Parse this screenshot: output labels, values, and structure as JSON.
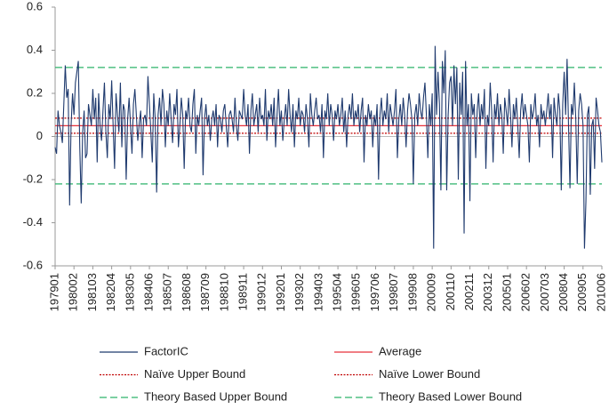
{
  "chart_data": {
    "type": "line",
    "categories": [
      "197901",
      null,
      null,
      null,
      null,
      null,
      null,
      null,
      null,
      null,
      null,
      null,
      null,
      "198002",
      null,
      null,
      null,
      null,
      null,
      null,
      null,
      null,
      null,
      null,
      null,
      null,
      "198103",
      null,
      null,
      null,
      null,
      null,
      null,
      null,
      null,
      null,
      null,
      null,
      null,
      "198204",
      null,
      null,
      null,
      null,
      null,
      null,
      null,
      null,
      null,
      null,
      null,
      null,
      "198305",
      null,
      null,
      null,
      null,
      null,
      null,
      null,
      null,
      null,
      null,
      null,
      null,
      "198406",
      null,
      null,
      null,
      null,
      null,
      null,
      null,
      null,
      null,
      null,
      null,
      null,
      "198507",
      null,
      null,
      null,
      null,
      null,
      null,
      null,
      null,
      null,
      null,
      null,
      null,
      "198608",
      null,
      null,
      null,
      null,
      null,
      null,
      null,
      null,
      null,
      null,
      null,
      null,
      "198709",
      null,
      null,
      null,
      null,
      null,
      null,
      null,
      null,
      null,
      null,
      null,
      null,
      "198810",
      null,
      null,
      null,
      null,
      null,
      null,
      null,
      null,
      null,
      null,
      null,
      null,
      "198911",
      null,
      null,
      null,
      null,
      null,
      null,
      null,
      null,
      null,
      null,
      null,
      null,
      "199012",
      null,
      null,
      null,
      null,
      null,
      null,
      null,
      null,
      null,
      null,
      null,
      null,
      "199201",
      null,
      null,
      null,
      null,
      null,
      null,
      null,
      null,
      null,
      null,
      null,
      null,
      "199302",
      null,
      null,
      null,
      null,
      null,
      null,
      null,
      null,
      null,
      null,
      null,
      null,
      "199403",
      null,
      null,
      null,
      null,
      null,
      null,
      null,
      null,
      null,
      null,
      null,
      null,
      "199504",
      null,
      null,
      null,
      null,
      null,
      null,
      null,
      null,
      null,
      null,
      null,
      null,
      "199605",
      null,
      null,
      null,
      null,
      null,
      null,
      null,
      null,
      null,
      null,
      null,
      null,
      "199706",
      null,
      null,
      null,
      null,
      null,
      null,
      null,
      null,
      null,
      null,
      null,
      null,
      "199807",
      null,
      null,
      null,
      null,
      null,
      null,
      null,
      null,
      null,
      null,
      null,
      null,
      "199908",
      null,
      null,
      null,
      null,
      null,
      null,
      null,
      null,
      null,
      null,
      null,
      null,
      "200009",
      null,
      null,
      null,
      null,
      null,
      null,
      null,
      null,
      null,
      null,
      null,
      null,
      "200110",
      null,
      null,
      null,
      null,
      null,
      null,
      null,
      null,
      null,
      null,
      null,
      null,
      "200211",
      null,
      null,
      null,
      null,
      null,
      null,
      null,
      null,
      null,
      null,
      null,
      null,
      "200312",
      null,
      null,
      null,
      null,
      null,
      null,
      null,
      null,
      null,
      null,
      null,
      null,
      "200501",
      null,
      null,
      null,
      null,
      null,
      null,
      null,
      null,
      null,
      null,
      null,
      null,
      "200602",
      null,
      null,
      null,
      null,
      null,
      null,
      null,
      null,
      null,
      null,
      null,
      null,
      "200703",
      null,
      null,
      null,
      null,
      null,
      null,
      null,
      null,
      null,
      null,
      null,
      null,
      "200804",
      null,
      null,
      null,
      null,
      null,
      null,
      null,
      null,
      null,
      null,
      null,
      null,
      "200905",
      null,
      null,
      null,
      null,
      null,
      null,
      null,
      null,
      null,
      null,
      null,
      null,
      "201006"
    ],
    "series": [
      {
        "name": "FactorIC",
        "color": "#1f3a6e",
        "values": [
          -0.05,
          -0.08,
          0.12,
          0.05,
          0.02,
          -0.03,
          0.15,
          0.33,
          0.18,
          0.22,
          -0.32,
          0.05,
          0.2,
          0.1,
          0.25,
          0.3,
          0.35,
          -0.05,
          -0.31,
          0.02,
          0.12,
          -0.1,
          -0.08,
          0.15,
          0.1,
          0.05,
          0.22,
          0.08,
          0.18,
          -0.12,
          0.2,
          0.05,
          -0.02,
          0.12,
          0.25,
          0.02,
          -0.1,
          0.15,
          0.08,
          0.26,
          0.05,
          -0.15,
          0.2,
          0.1,
          0.02,
          0.25,
          -0.05,
          0.15,
          0.12,
          -0.2,
          0.08,
          0.18,
          0.05,
          -0.08,
          0.15,
          0.22,
          0.1,
          -0.02,
          0.06,
          0.12,
          -0.1,
          0.08,
          0.1,
          0.05,
          0.28,
          0.15,
          0.02,
          -0.12,
          0.2,
          0.08,
          -0.26,
          0.1,
          0.18,
          0.05,
          0.22,
          0.15,
          -0.05,
          0.12,
          0.05,
          0.2,
          0.08,
          -0.03,
          0.15,
          0.1,
          0.22,
          -0.05,
          0.05,
          0.18,
          0.1,
          -0.15,
          0.12,
          0.08,
          0.18,
          0.05,
          0.02,
          0.15,
          0.22,
          -0.08,
          0.1,
          0.05,
          0.12,
          0.18,
          -0.18,
          0.08,
          0.15,
          0.05,
          0.1,
          -0.02,
          0.08,
          0.12,
          0.05,
          0.15,
          -0.05,
          0.1,
          0.08,
          0.02,
          0.12,
          0.15,
          0.05,
          -0.05,
          0.1,
          0.12,
          0.08,
          0.02,
          0.18,
          0.05,
          -0.02,
          0.12,
          0.1,
          0.08,
          0.22,
          0.1,
          0.05,
          0.15,
          -0.08,
          0.12,
          0.2,
          0.05,
          0.1,
          0.15,
          0.02,
          0.18,
          0.08,
          0.1,
          0.05,
          0.22,
          -0.02,
          0.12,
          0.08,
          0.15,
          0.05,
          0.18,
          -0.05,
          0.1,
          0.22,
          0.05,
          0.12,
          -0.02,
          0.08,
          0.15,
          0.05,
          0.22,
          0.1,
          0.02,
          0.15,
          -0.05,
          0.12,
          0.08,
          0.18,
          0.05,
          0.12,
          0.1,
          0.02,
          0.15,
          0.08,
          -0.05,
          0.2,
          0.1,
          0.05,
          0.12,
          0.18,
          0.08,
          0.1,
          0.02,
          0.15,
          -0.1,
          0.12,
          0.08,
          0.2,
          0.05,
          0.15,
          0.1,
          -0.02,
          0.12,
          0.08,
          0.15,
          0.05,
          0.1,
          0.18,
          0.02,
          0.12,
          -0.05,
          0.1,
          0.15,
          0.08,
          0.2,
          0.05,
          0.12,
          0.08,
          0.15,
          0.02,
          0.12,
          0.18,
          -0.12,
          0.1,
          0.05,
          0.15,
          0.08,
          0.12,
          -0.05,
          0.1,
          0.05,
          0.15,
          -0.2,
          0.1,
          0.18,
          0.05,
          0.12,
          0.08,
          0.2,
          0.02,
          0.15,
          0.1,
          0.05,
          0.12,
          0.22,
          -0.1,
          0.08,
          0.15,
          0.05,
          0.18,
          0.1,
          -0.05,
          0.12,
          0.2,
          0.15,
          0.08,
          -0.22,
          0.1,
          0.15,
          0.05,
          0.2,
          0.12,
          0.08,
          0.18,
          0.25,
          0.1,
          -0.1,
          0.15,
          0.05,
          0.2,
          -0.52,
          0.42,
          0.1,
          0.3,
          0.15,
          -0.25,
          0.35,
          0.2,
          0.4,
          -0.25,
          0.1,
          0.25,
          0.28,
          0.05,
          0.33,
          0.15,
          0.32,
          -0.2,
          0.25,
          0.1,
          0.3,
          -0.45,
          0.35,
          0.05,
          0.15,
          -0.3,
          0.2,
          0.1,
          0.15,
          -0.1,
          0.12,
          0.2,
          0.05,
          0.15,
          0.08,
          0.22,
          -0.15,
          0.1,
          0.05,
          0.25,
          0.12,
          -0.12,
          0.15,
          0.08,
          0.2,
          0.05,
          0.15,
          0.1,
          -0.08,
          0.18,
          0.12,
          0.05,
          0.22,
          0.1,
          -0.05,
          0.15,
          0.08,
          0.18,
          0.05,
          -0.1,
          0.12,
          0.2,
          0.08,
          0.15,
          0.1,
          0.05,
          -0.12,
          0.15,
          0.08,
          0.12,
          0.2,
          0.05,
          0.1,
          -0.05,
          0.15,
          0.08,
          0.12,
          0.05,
          0.12,
          0.2,
          0.08,
          0.15,
          -0.1,
          0.18,
          0.1,
          0.05,
          0.2,
          0.12,
          -0.25,
          0.15,
          0.3,
          0.1,
          0.36,
          0.05,
          -0.24,
          0.15,
          0.1,
          0.25,
          0.08,
          -0.22,
          0.12,
          0.2,
          0.15,
          0.05,
          -0.52,
          -0.3,
          0.1,
          0.14,
          -0.27,
          0.05,
          0.08,
          -0.15,
          0.18,
          0.12,
          0.05,
          0.02,
          -0.12
        ]
      },
      {
        "name": "Average",
        "color": "#e8303a",
        "dash": "solid",
        "value": 0.05
      },
      {
        "name": "Naïve Upper Bound",
        "color": "#c00000",
        "dash": "dotted",
        "value": 0.085
      },
      {
        "name": "Naïve Lower Bound",
        "color": "#c00000",
        "dash": "dotted",
        "value": 0.015
      },
      {
        "name": "Theory Based Upper Bound",
        "color": "#2db36a",
        "dash": "dashed",
        "value": 0.32
      },
      {
        "name": "Theory Based Lower Bound",
        "color": "#2db36a",
        "dash": "dashed",
        "value": -0.22
      }
    ],
    "ylim": [
      -0.6,
      0.6
    ],
    "yticks": [
      -0.6,
      -0.4,
      -0.2,
      0,
      0.2,
      0.4,
      0.6
    ]
  }
}
